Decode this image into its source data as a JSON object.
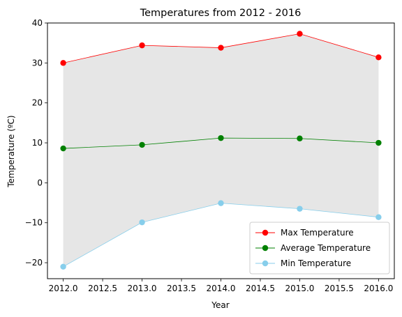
{
  "chart_data": {
    "type": "line",
    "title": "Temperatures from 2012 - 2016",
    "xlabel": "Year",
    "ylabel": "Temperature (ºC)",
    "x": [
      2012,
      2013,
      2014,
      2015,
      2016
    ],
    "xlim": [
      2011.8,
      2016.2
    ],
    "ylim": [
      -24,
      40
    ],
    "xticks": [
      2012.0,
      2012.5,
      2013.0,
      2013.5,
      2014.0,
      2014.5,
      2015.0,
      2015.5,
      2016.0
    ],
    "xtick_labels": [
      "2012.0",
      "2012.5",
      "2013.0",
      "2013.5",
      "2014.0",
      "2014.5",
      "2015.0",
      "2015.5",
      "2016.0"
    ],
    "yticks": [
      -20,
      -10,
      0,
      10,
      20,
      30,
      40
    ],
    "ytick_labels": [
      "−20",
      "−10",
      "0",
      "10",
      "20",
      "30",
      "40"
    ],
    "series": [
      {
        "name": "Max Temperature",
        "color": "#ff0000",
        "values": [
          30.0,
          34.4,
          33.8,
          37.3,
          31.4
        ]
      },
      {
        "name": "Average Temperature",
        "color": "#008000",
        "values": [
          8.6,
          9.5,
          11.2,
          11.1,
          10.0
        ]
      },
      {
        "name": "Min Temperature",
        "color": "#87ceeb",
        "values": [
          -21.0,
          -9.9,
          -5.1,
          -6.5,
          -8.6
        ]
      }
    ],
    "fill_between": {
      "upper": "Max Temperature",
      "lower": "Min Temperature",
      "color": "#e6e6e6"
    },
    "grid": false,
    "legend_position": "lower-right"
  }
}
